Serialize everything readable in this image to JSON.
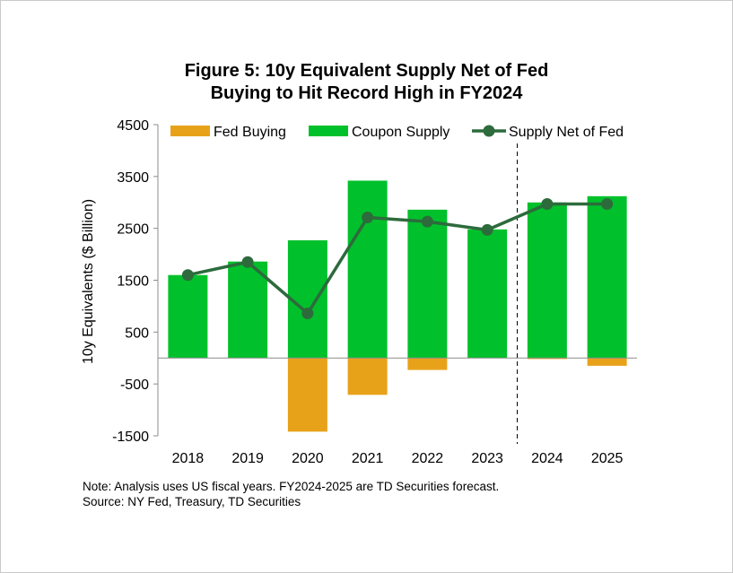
{
  "chart_data": {
    "type": "bar",
    "title_line1": "Figure 5: 10y Equivalent Supply Net of Fed",
    "title_line2": "Buying to Hit Record High in FY2024",
    "ylabel": "10y Equivalents ($ Billion)",
    "xlabel": "",
    "categories": [
      "2018",
      "2019",
      "2020",
      "2021",
      "2022",
      "2023",
      "2024",
      "2025"
    ],
    "ylim": [
      -1500,
      4500
    ],
    "yticks": [
      -1500,
      -500,
      500,
      1500,
      2500,
      3500,
      4500
    ],
    "series": [
      {
        "name": "Fed Buying",
        "kind": "bar",
        "color": "#e8a21a",
        "values": [
          0,
          0,
          -1420,
          -710,
          -230,
          0,
          -20,
          -150
        ]
      },
      {
        "name": "Coupon Supply",
        "kind": "bar",
        "color": "#00c12b",
        "values": [
          1600,
          1860,
          2270,
          3420,
          2860,
          2480,
          3000,
          3120
        ]
      },
      {
        "name": "Supply Net of Fed",
        "kind": "line",
        "color": "#2d6b3c",
        "values": [
          1600,
          1850,
          860,
          2710,
          2630,
          2470,
          2970,
          2970
        ]
      }
    ],
    "forecast_divider_after": "2023",
    "legend_position": "top",
    "grid": false
  },
  "notes": {
    "line1": "Note: Analysis uses US fiscal years. FY2024-2025 are TD Securities forecast.",
    "line2": "Source: NY Fed, Treasury, TD Securities"
  }
}
